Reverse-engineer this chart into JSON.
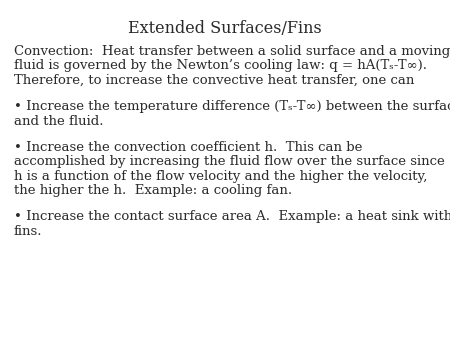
{
  "title": "Extended Surfaces/Fins",
  "background_color": "#ffffff",
  "text_color": "#2a2a2a",
  "title_fontsize": 11.5,
  "body_fontsize": 9.5,
  "font_family": "DejaVu Serif",
  "para1_line1": "Convection:  Heat transfer between a solid surface and a moving",
  "para1_line2": "fluid is governed by the Newton’s cooling law: q = hA(Tₛ-T∞).",
  "para1_line3": "Therefore, to increase the convective heat transfer, one can",
  "bullet1_line1": "• Increase the temperature difference (Tₛ-T∞) between the surface",
  "bullet1_line2": "and the fluid.",
  "bullet2_line1": "• Increase the convection coefficient h.  This can be",
  "bullet2_line2": "accomplished by increasing the fluid flow over the surface since",
  "bullet2_line3": "h is a function of the flow velocity and the higher the velocity,",
  "bullet2_line4": "the higher the h.  Example: a cooling fan.",
  "bullet3_line1": "• Increase the contact surface area A.  Example: a heat sink with",
  "bullet3_line2": "fins."
}
